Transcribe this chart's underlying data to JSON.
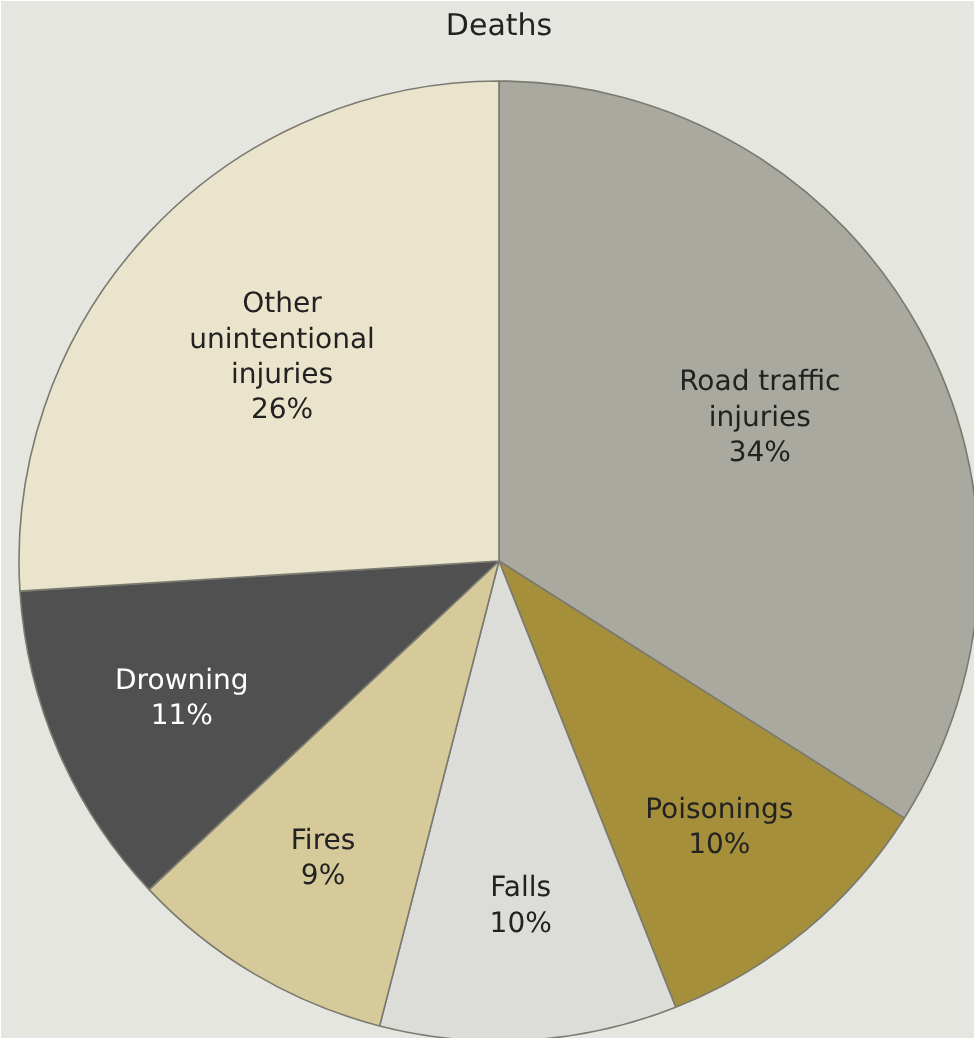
{
  "chart_data": {
    "type": "pie",
    "title": "Deaths",
    "categories": [
      "Road traffic injuries",
      "Poisonings",
      "Falls",
      "Fires",
      "Drowning",
      "Other unintentional injuries"
    ],
    "values": [
      34,
      10,
      10,
      9,
      11,
      26
    ],
    "colors": [
      "#a9a9a0",
      "#a68f3a",
      "#dcdcd8",
      "#d6ca9a",
      "#505050",
      "#ebe4cc"
    ],
    "value_labels": [
      "34%",
      "10%",
      "10%",
      "9%",
      "11%",
      "26%"
    ]
  }
}
